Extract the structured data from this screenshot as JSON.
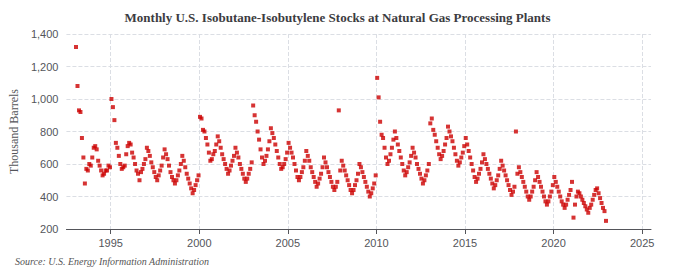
{
  "chart_data": {
    "type": "scatter",
    "title": "Monthly U.S. Isobutane-Isobutylene Stocks at Natural Gas Processing Plants",
    "ylabel": "Thousand Barrels",
    "source": "Source: U.S. Energy Information Administration",
    "color": "#CC0000",
    "marker": "square",
    "grid": true,
    "xlim": [
      1992.5,
      2025.5
    ],
    "xticks": [
      1995,
      2000,
      2005,
      2010,
      2015,
      2020,
      2025
    ],
    "ylim": [
      200,
      1400
    ],
    "yticks": [
      200,
      400,
      600,
      800,
      {
        "value": 1000,
        "label": "1,000"
      },
      {
        "value": 1200,
        "label": "1,200"
      },
      {
        "value": 1400,
        "label": "1,400"
      }
    ],
    "x": [
      1993.0416666666667,
      1993.125,
      1993.2083333333333,
      1993.2916666666667,
      1993.375,
      1993.4583333333333,
      1993.5416666666667,
      1993.625,
      1993.7083333333333,
      1993.7916666666667,
      1993.875,
      1993.9583333333333,
      1994.0416666666667,
      1994.125,
      1994.2083333333333,
      1994.2916666666667,
      1994.375,
      1994.4583333333333,
      1994.5416666666667,
      1994.625,
      1994.7083333333333,
      1994.7916666666667,
      1994.875,
      1994.9583333333333,
      1995.0416666666667,
      1995.125,
      1995.2083333333333,
      1995.2916666666667,
      1995.375,
      1995.4583333333333,
      1995.5416666666667,
      1995.625,
      1995.7083333333333,
      1995.7916666666667,
      1995.875,
      1995.9583333333333,
      1996.0416666666667,
      1996.125,
      1996.2083333333333,
      1996.2916666666667,
      1996.375,
      1996.4583333333333,
      1996.5416666666667,
      1996.625,
      1996.7083333333333,
      1996.7916666666667,
      1996.875,
      1996.9583333333333,
      1997.0416666666667,
      1997.125,
      1997.2083333333333,
      1997.2916666666667,
      1997.375,
      1997.4583333333333,
      1997.5416666666667,
      1997.625,
      1997.7083333333333,
      1997.7916666666667,
      1997.875,
      1997.9583333333333,
      1998.0416666666667,
      1998.125,
      1998.2083333333333,
      1998.2916666666667,
      1998.375,
      1998.4583333333333,
      1998.5416666666667,
      1998.625,
      1998.7083333333333,
      1998.7916666666667,
      1998.875,
      1998.9583333333333,
      1999.0416666666667,
      1999.125,
      1999.2083333333333,
      1999.2916666666667,
      1999.375,
      1999.4583333333333,
      1999.5416666666667,
      1999.625,
      1999.7083333333333,
      1999.7916666666667,
      1999.875,
      1999.9583333333333,
      2000.0416666666667,
      2000.125,
      2000.2083333333333,
      2000.2916666666667,
      2000.375,
      2000.4583333333333,
      2000.5416666666667,
      2000.625,
      2000.7083333333333,
      2000.7916666666667,
      2000.875,
      2000.9583333333333,
      2001.0416666666667,
      2001.125,
      2001.2083333333333,
      2001.2916666666667,
      2001.375,
      2001.4583333333333,
      2001.5416666666667,
      2001.625,
      2001.7083333333333,
      2001.7916666666667,
      2001.875,
      2001.9583333333333,
      2002.0416666666667,
      2002.125,
      2002.2083333333333,
      2002.2916666666667,
      2002.375,
      2002.4583333333333,
      2002.5416666666667,
      2002.625,
      2002.7083333333333,
      2002.7916666666667,
      2002.875,
      2002.9583333333333,
      2003.0416666666667,
      2003.125,
      2003.2083333333333,
      2003.2916666666667,
      2003.375,
      2003.4583333333333,
      2003.5416666666667,
      2003.625,
      2003.7083333333333,
      2003.7916666666667,
      2003.875,
      2003.9583333333333,
      2004.0416666666667,
      2004.125,
      2004.2083333333333,
      2004.2916666666667,
      2004.375,
      2004.4583333333333,
      2004.5416666666667,
      2004.625,
      2004.7083333333333,
      2004.7916666666667,
      2004.875,
      2004.9583333333333,
      2005.0416666666667,
      2005.125,
      2005.2083333333333,
      2005.2916666666667,
      2005.375,
      2005.4583333333333,
      2005.5416666666667,
      2005.625,
      2005.7083333333333,
      2005.7916666666667,
      2005.875,
      2005.9583333333333,
      2006.0416666666667,
      2006.125,
      2006.2083333333333,
      2006.2916666666667,
      2006.375,
      2006.4583333333333,
      2006.5416666666667,
      2006.625,
      2006.7083333333333,
      2006.7916666666667,
      2006.875,
      2006.9583333333333,
      2007.0416666666667,
      2007.125,
      2007.2083333333333,
      2007.2916666666667,
      2007.375,
      2007.4583333333333,
      2007.5416666666667,
      2007.625,
      2007.7083333333333,
      2007.7916666666667,
      2007.875,
      2007.9583333333333,
      2008.0416666666667,
      2008.125,
      2008.2083333333333,
      2008.2916666666667,
      2008.375,
      2008.4583333333333,
      2008.5416666666667,
      2008.625,
      2008.7083333333333,
      2008.7916666666667,
      2008.875,
      2008.9583333333333,
      2009.0416666666667,
      2009.125,
      2009.2083333333333,
      2009.2916666666667,
      2009.375,
      2009.4583333333333,
      2009.5416666666667,
      2009.625,
      2009.7083333333333,
      2009.7916666666667,
      2009.875,
      2009.9583333333333,
      2010.0416666666667,
      2010.125,
      2010.2083333333333,
      2010.2916666666667,
      2010.375,
      2010.4583333333333,
      2010.5416666666667,
      2010.625,
      2010.7083333333333,
      2010.7916666666667,
      2010.875,
      2010.9583333333333,
      2011.0416666666667,
      2011.125,
      2011.2083333333333,
      2011.2916666666667,
      2011.375,
      2011.4583333333333,
      2011.5416666666667,
      2011.625,
      2011.7083333333333,
      2011.7916666666667,
      2011.875,
      2011.9583333333333,
      2012.0416666666667,
      2012.125,
      2012.2083333333333,
      2012.2916666666667,
      2012.375,
      2012.4583333333333,
      2012.5416666666667,
      2012.625,
      2012.7083333333333,
      2012.7916666666667,
      2012.875,
      2012.9583333333333,
      2013.0416666666667,
      2013.125,
      2013.2083333333333,
      2013.2916666666667,
      2013.375,
      2013.4583333333333,
      2013.5416666666667,
      2013.625,
      2013.7083333333333,
      2013.7916666666667,
      2013.875,
      2013.9583333333333,
      2014.0416666666667,
      2014.125,
      2014.2083333333333,
      2014.2916666666667,
      2014.375,
      2014.4583333333333,
      2014.5416666666667,
      2014.625,
      2014.7083333333333,
      2014.7916666666667,
      2014.875,
      2014.9583333333333,
      2015.0416666666667,
      2015.125,
      2015.2083333333333,
      2015.2916666666667,
      2015.375,
      2015.4583333333333,
      2015.5416666666667,
      2015.625,
      2015.7083333333333,
      2015.7916666666667,
      2015.875,
      2015.9583333333333,
      2016.0416666666667,
      2016.125,
      2016.2083333333333,
      2016.2916666666667,
      2016.375,
      2016.4583333333333,
      2016.5416666666667,
      2016.625,
      2016.7083333333333,
      2016.7916666666667,
      2016.875,
      2016.9583333333333,
      2017.0416666666667,
      2017.125,
      2017.2083333333333,
      2017.2916666666667,
      2017.375,
      2017.4583333333333,
      2017.5416666666667,
      2017.625,
      2017.7083333333333,
      2017.7916666666667,
      2017.875,
      2017.9583333333333,
      2018.0416666666667,
      2018.125,
      2018.2083333333333,
      2018.2916666666667,
      2018.375,
      2018.4583333333333,
      2018.5416666666667,
      2018.625,
      2018.7083333333333,
      2018.7916666666667,
      2018.875,
      2018.9583333333333,
      2019.0416666666667,
      2019.125,
      2019.2083333333333,
      2019.2916666666667,
      2019.375,
      2019.4583333333333,
      2019.5416666666667,
      2019.625,
      2019.7083333333333,
      2019.7916666666667,
      2019.875,
      2019.9583333333333,
      2020.0416666666667,
      2020.125,
      2020.2083333333333,
      2020.2916666666667,
      2020.375,
      2020.4583333333333,
      2020.5416666666667,
      2020.625,
      2020.7083333333333,
      2020.7916666666667,
      2020.875,
      2020.9583333333333,
      2021.0416666666667,
      2021.125,
      2021.2083333333333,
      2021.2916666666667,
      2021.375,
      2021.4583333333333,
      2021.5416666666667,
      2021.625,
      2021.7083333333333,
      2021.7916666666667,
      2021.875,
      2021.9583333333333,
      2022.0416666666667,
      2022.125,
      2022.2083333333333,
      2022.2916666666667,
      2022.375,
      2022.4583333333333,
      2022.5416666666667,
      2022.625,
      2022.7083333333333,
      2022.7916666666667,
      2022.875,
      2022.9583333333333
    ],
    "values": [
      1320,
      1080,
      930,
      920,
      760,
      640,
      480,
      570,
      560,
      600,
      590,
      640,
      700,
      710,
      690,
      620,
      590,
      560,
      530,
      540,
      560,
      560,
      590,
      580,
      1000,
      950,
      870,
      730,
      700,
      650,
      600,
      570,
      580,
      590,
      660,
      710,
      730,
      720,
      670,
      640,
      600,
      560,
      540,
      500,
      550,
      570,
      600,
      630,
      700,
      680,
      650,
      610,
      580,
      550,
      520,
      500,
      530,
      560,
      590,
      640,
      690,
      660,
      630,
      590,
      550,
      520,
      500,
      480,
      500,
      530,
      560,
      600,
      650,
      620,
      580,
      540,
      510,
      480,
      450,
      420,
      440,
      470,
      500,
      530,
      890,
      880,
      810,
      800,
      760,
      720,
      670,
      620,
      630,
      660,
      680,
      720,
      770,
      740,
      700,
      660,
      630,
      600,
      570,
      540,
      560,
      590,
      620,
      650,
      700,
      670,
      640,
      600,
      570,
      540,
      510,
      490,
      510,
      540,
      570,
      610,
      960,
      900,
      860,
      800,
      750,
      690,
      640,
      600,
      620,
      650,
      690,
      740,
      820,
      790,
      760,
      720,
      680,
      640,
      600,
      570,
      580,
      600,
      630,
      670,
      730,
      700,
      670,
      640,
      600,
      560,
      520,
      500,
      520,
      550,
      580,
      620,
      680,
      650,
      620,
      580,
      550,
      520,
      490,
      460,
      480,
      510,
      540,
      580,
      640,
      610,
      580,
      550,
      520,
      490,
      460,
      440,
      460,
      490,
      930,
      560,
      620,
      590,
      560,
      530,
      500,
      470,
      440,
      420,
      440,
      470,
      500,
      540,
      600,
      580,
      550,
      520,
      490,
      460,
      430,
      400,
      420,
      450,
      480,
      530,
      1130,
      1010,
      860,
      780,
      760,
      700,
      640,
      600,
      620,
      660,
      700,
      750,
      800,
      760,
      720,
      680,
      640,
      600,
      560,
      530,
      550,
      580,
      610,
      650,
      700,
      670,
      640,
      600,
      570,
      540,
      510,
      480,
      500,
      530,
      560,
      600,
      850,
      880,
      810,
      780,
      740,
      700,
      660,
      630,
      650,
      680,
      720,
      760,
      830,
      800,
      770,
      740,
      700,
      660,
      620,
      590,
      610,
      640,
      670,
      710,
      760,
      720,
      680,
      640,
      600,
      560,
      520,
      490,
      510,
      540,
      570,
      610,
      660,
      630,
      600,
      570,
      540,
      510,
      480,
      450,
      470,
      500,
      530,
      570,
      620,
      590,
      560,
      530,
      500,
      470,
      440,
      410,
      430,
      460,
      800,
      540,
      580,
      550,
      520,
      490,
      460,
      430,
      400,
      380,
      400,
      430,
      460,
      500,
      550,
      520,
      490,
      460,
      430,
      400,
      370,
      350,
      370,
      400,
      430,
      470,
      520,
      490,
      460,
      430,
      400,
      370,
      350,
      330,
      350,
      380,
      410,
      440,
      490,
      270,
      350,
      400,
      430,
      420,
      400,
      380,
      360,
      340,
      320,
      300,
      330,
      350,
      380,
      410,
      440,
      450,
      420,
      390,
      360,
      330,
      310,
      250
    ]
  }
}
